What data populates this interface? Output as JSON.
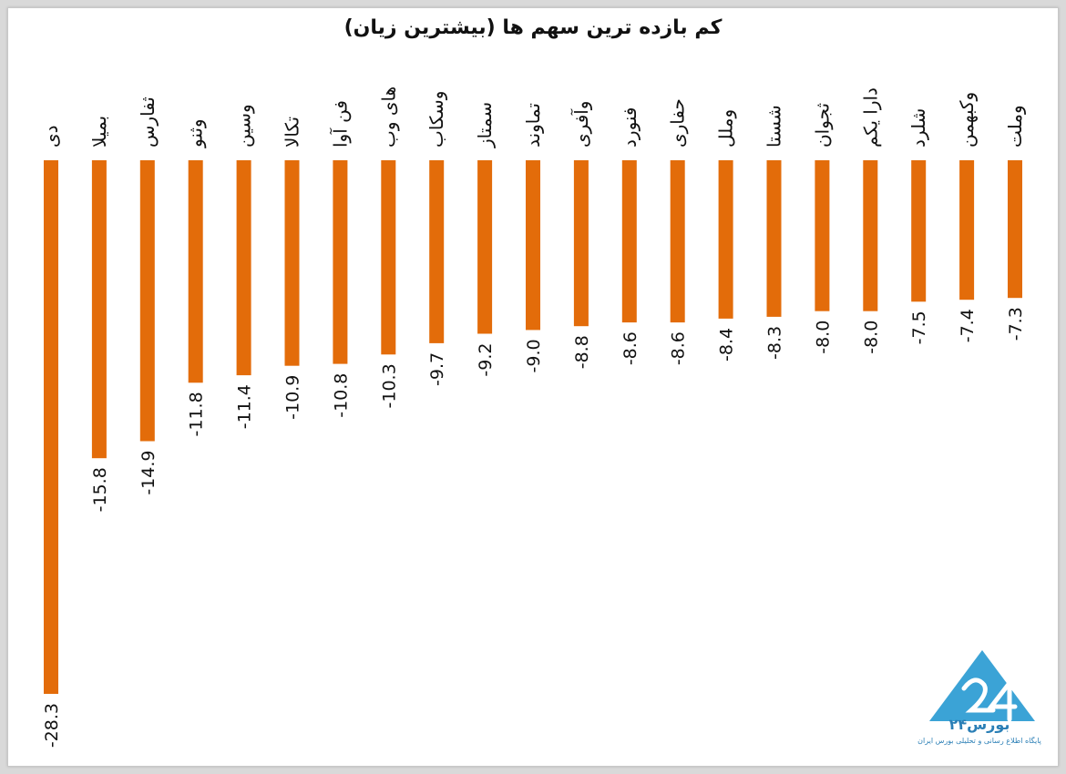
{
  "chart_data": {
    "type": "bar",
    "title": "کم بازده ترین سهم ها (بیشترین زیان)",
    "categories": [
      "دی",
      "بمیلا",
      "ثفارس",
      "وثنو",
      "وسین",
      "تکالا",
      "فن آوا",
      "های وب",
      "وسکاب",
      "سمتاز",
      "تماوند",
      "وآفری",
      "فنورد",
      "حفاری",
      "وملل",
      "شستا",
      "ثجوان",
      "دارا یکم",
      "شلرد",
      "وکبهمن",
      "وملت"
    ],
    "values": [
      -28.3,
      -15.8,
      -14.9,
      -11.8,
      -11.4,
      -10.9,
      -10.8,
      -10.3,
      -9.7,
      -9.2,
      -9.0,
      -8.8,
      -8.6,
      -8.6,
      -8.4,
      -8.3,
      -8.0,
      -8.0,
      -7.5,
      -7.4,
      -7.3
    ],
    "value_labels": [
      "-28.3",
      "-15.8",
      "-14.9",
      "-11.8",
      "-11.4",
      "-10.9",
      "-10.8",
      "-10.3",
      "-9.7",
      "-9.2",
      "-9.0",
      "-8.8",
      "-8.6",
      "-8.6",
      "-8.4",
      "-8.3",
      "-8.0",
      "-8.0",
      "-7.5",
      "-7.4",
      "-7.3"
    ],
    "bar_color": "#e36c0a",
    "grid": false,
    "legend": "none"
  },
  "logo": {
    "name": "بورس۲۴",
    "tagline": "پایگاه اطلاع رسانی و تحلیلی بورس ایران",
    "color": "#3ba3d6"
  }
}
